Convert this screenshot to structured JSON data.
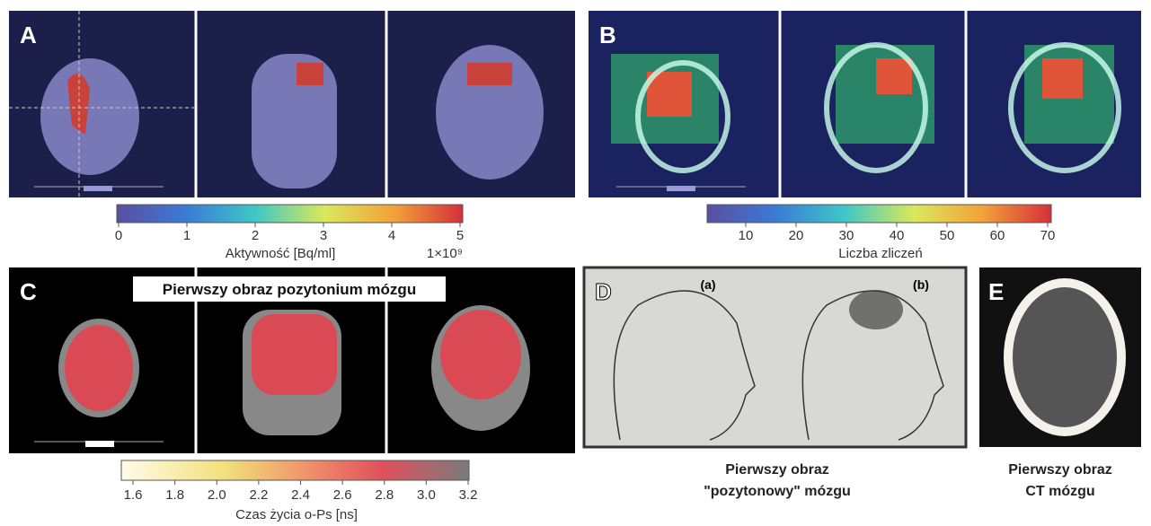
{
  "panels": {
    "A": {
      "label": "A",
      "colorbar": {
        "ticks": [
          "0",
          "1",
          "2",
          "3",
          "4",
          "5"
        ],
        "title": "Aktywność [Bq/ml]",
        "multiplier": "1×10⁹"
      }
    },
    "B": {
      "label": "B",
      "colorbar": {
        "ticks": [
          "10",
          "20",
          "30",
          "40",
          "50",
          "60",
          "70"
        ],
        "title": "Liczba zliczeń"
      }
    },
    "C": {
      "label": "C",
      "banner": "Pierwszy obraz pozytonium mózgu",
      "colorbar": {
        "ticks": [
          "1.6",
          "1.8",
          "2.0",
          "2.2",
          "2.4",
          "2.6",
          "2.8",
          "3.0",
          "3.2"
        ],
        "title": "Czas życia o-Ps [ns]"
      }
    },
    "D": {
      "label": "D",
      "sublabels": [
        "(a)",
        "(b)"
      ],
      "caption": [
        "Pierwszy obraz",
        "\"pozytonowy\" mózgu"
      ]
    },
    "E": {
      "label": "E",
      "caption": [
        "Pierwszy obraz",
        "CT mózgu"
      ]
    }
  }
}
